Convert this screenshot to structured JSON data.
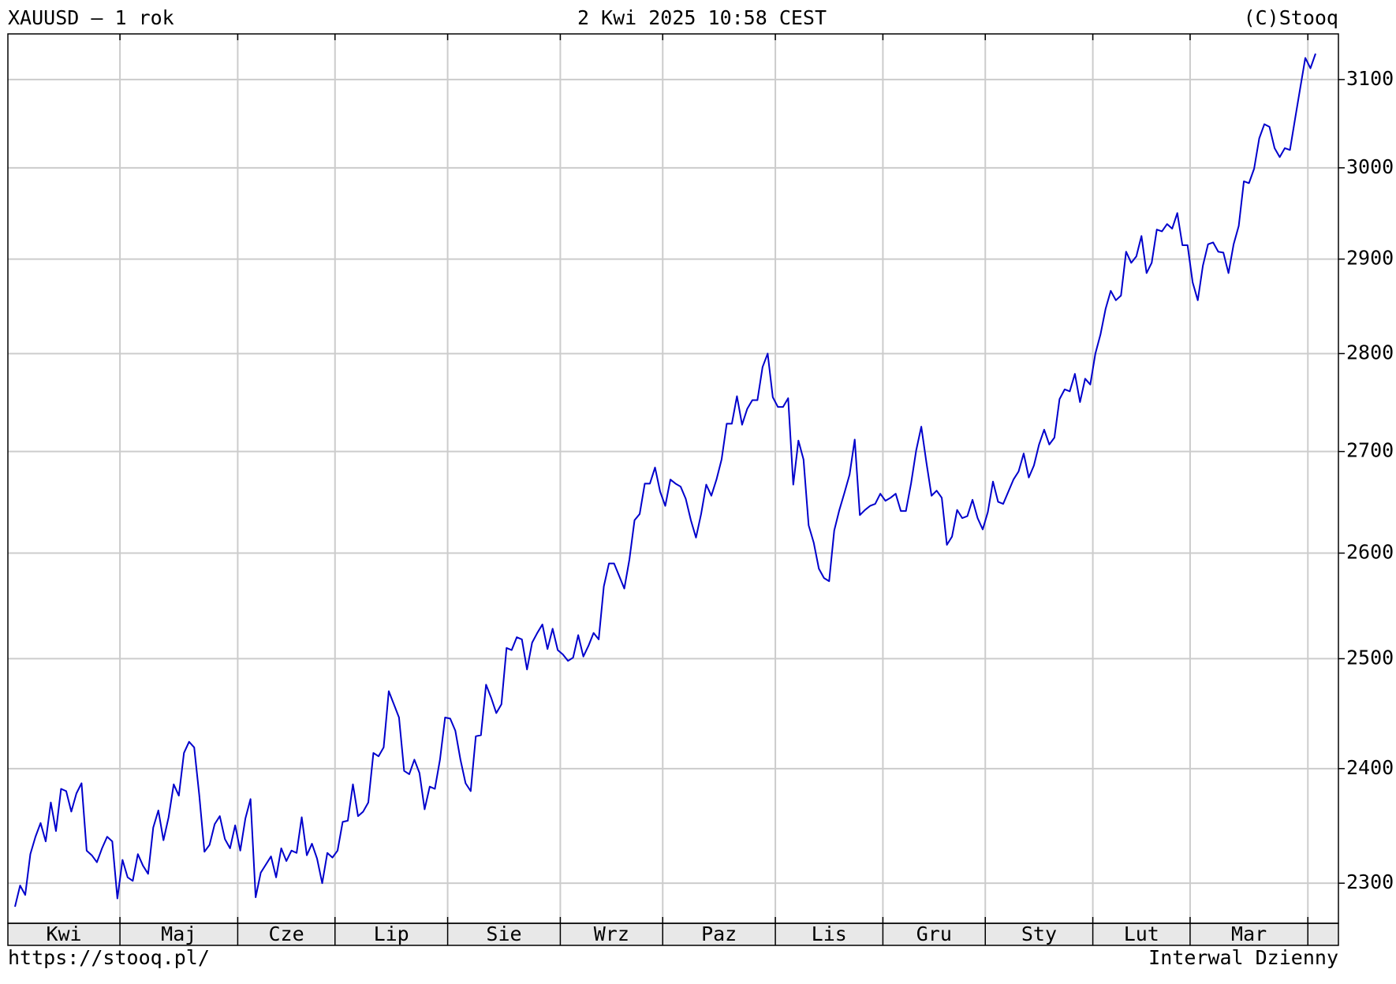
{
  "header": {
    "title": "XAUUSD – 1 rok",
    "date": "2 Kwi 2025 10:58 CEST",
    "copyright": "(C)Stooq"
  },
  "footer": {
    "url": "https://stooq.pl/",
    "interval": "Interwal Dzienny"
  },
  "chart_data": {
    "type": "line",
    "color": "#0000cc",
    "log_scale": true,
    "grid": true,
    "ylim": [
      2266,
      3153
    ],
    "yticks": [
      2300,
      2400,
      2500,
      2600,
      2700,
      2800,
      2900,
      3000,
      3100
    ],
    "months": [
      {
        "label": "Kwi",
        "values": [
          2280,
          2298,
          2290,
          2325,
          2340,
          2352,
          2336,
          2370,
          2345,
          2382,
          2380,
          2362,
          2378,
          2387,
          2328,
          2324,
          2318,
          2330,
          2340,
          2336,
          2287
        ]
      },
      {
        "label": "Maj",
        "values": [
          2320,
          2305,
          2302,
          2325,
          2315,
          2308,
          2348,
          2363,
          2337,
          2357,
          2386,
          2376,
          2414,
          2424,
          2419,
          2376,
          2327,
          2333,
          2351,
          2358,
          2338,
          2330,
          2350
        ]
      },
      {
        "label": "Cze",
        "values": [
          2328,
          2356,
          2373,
          2288,
          2309,
          2316,
          2323,
          2305,
          2330,
          2319,
          2328,
          2326,
          2357,
          2324,
          2334,
          2321,
          2300,
          2326,
          2322
        ]
      },
      {
        "label": "Lip",
        "values": [
          2328,
          2353,
          2354,
          2386,
          2358,
          2362,
          2370,
          2414,
          2411,
          2419,
          2470,
          2458,
          2446,
          2398,
          2395,
          2408,
          2396,
          2364,
          2384,
          2382,
          2408,
          2446
        ]
      },
      {
        "label": "Sie",
        "values": [
          2445,
          2434,
          2408,
          2387,
          2380,
          2429,
          2430,
          2476,
          2464,
          2450,
          2458,
          2510,
          2508,
          2520,
          2518,
          2490,
          2515,
          2524,
          2532,
          2509,
          2528,
          2508
        ]
      },
      {
        "label": "Wrz",
        "values": [
          2504,
          2498,
          2501,
          2522,
          2502,
          2512,
          2524,
          2518,
          2568,
          2590,
          2590,
          2578,
          2566,
          2594,
          2632,
          2638,
          2668,
          2668,
          2684,
          2660
        ]
      },
      {
        "label": "Paz",
        "values": [
          2646,
          2672,
          2668,
          2665,
          2653,
          2632,
          2615,
          2638,
          2667,
          2656,
          2672,
          2692,
          2728,
          2728,
          2756,
          2727,
          2743,
          2752,
          2752,
          2786,
          2800,
          2755
        ]
      },
      {
        "label": "Lis",
        "values": [
          2745,
          2745,
          2754,
          2667,
          2711,
          2692,
          2627,
          2610,
          2585,
          2576,
          2573,
          2622,
          2642,
          2659,
          2677,
          2712,
          2637,
          2642,
          2646,
          2648,
          2658
        ]
      },
      {
        "label": "Gru",
        "values": [
          2651,
          2654,
          2658,
          2641,
          2641,
          2668,
          2701,
          2725,
          2689,
          2656,
          2661,
          2654,
          2608,
          2616,
          2642,
          2634,
          2636,
          2652,
          2634,
          2623
        ]
      },
      {
        "label": "Sty",
        "values": [
          2640,
          2670,
          2650,
          2648,
          2660,
          2672,
          2680,
          2698,
          2674,
          2686,
          2707,
          2722,
          2707,
          2714,
          2753,
          2763,
          2761,
          2779,
          2750,
          2774,
          2768
        ]
      },
      {
        "label": "Lut",
        "values": [
          2800,
          2820,
          2847,
          2866,
          2856,
          2861,
          2908,
          2896,
          2903,
          2925,
          2885,
          2896,
          2932,
          2930,
          2938,
          2933,
          2950,
          2915,
          2915
        ]
      },
      {
        "label": "Mar",
        "values": [
          2875,
          2856,
          2893,
          2916,
          2918,
          2908,
          2907,
          2885,
          2916,
          2936,
          2985,
          2983,
          2999,
          3033,
          3049,
          3046,
          3022,
          3012,
          3022,
          3020,
          3055,
          3090,
          3125
        ]
      },
      {
        "label": null,
        "values": [
          3113,
          3130
        ]
      }
    ]
  }
}
